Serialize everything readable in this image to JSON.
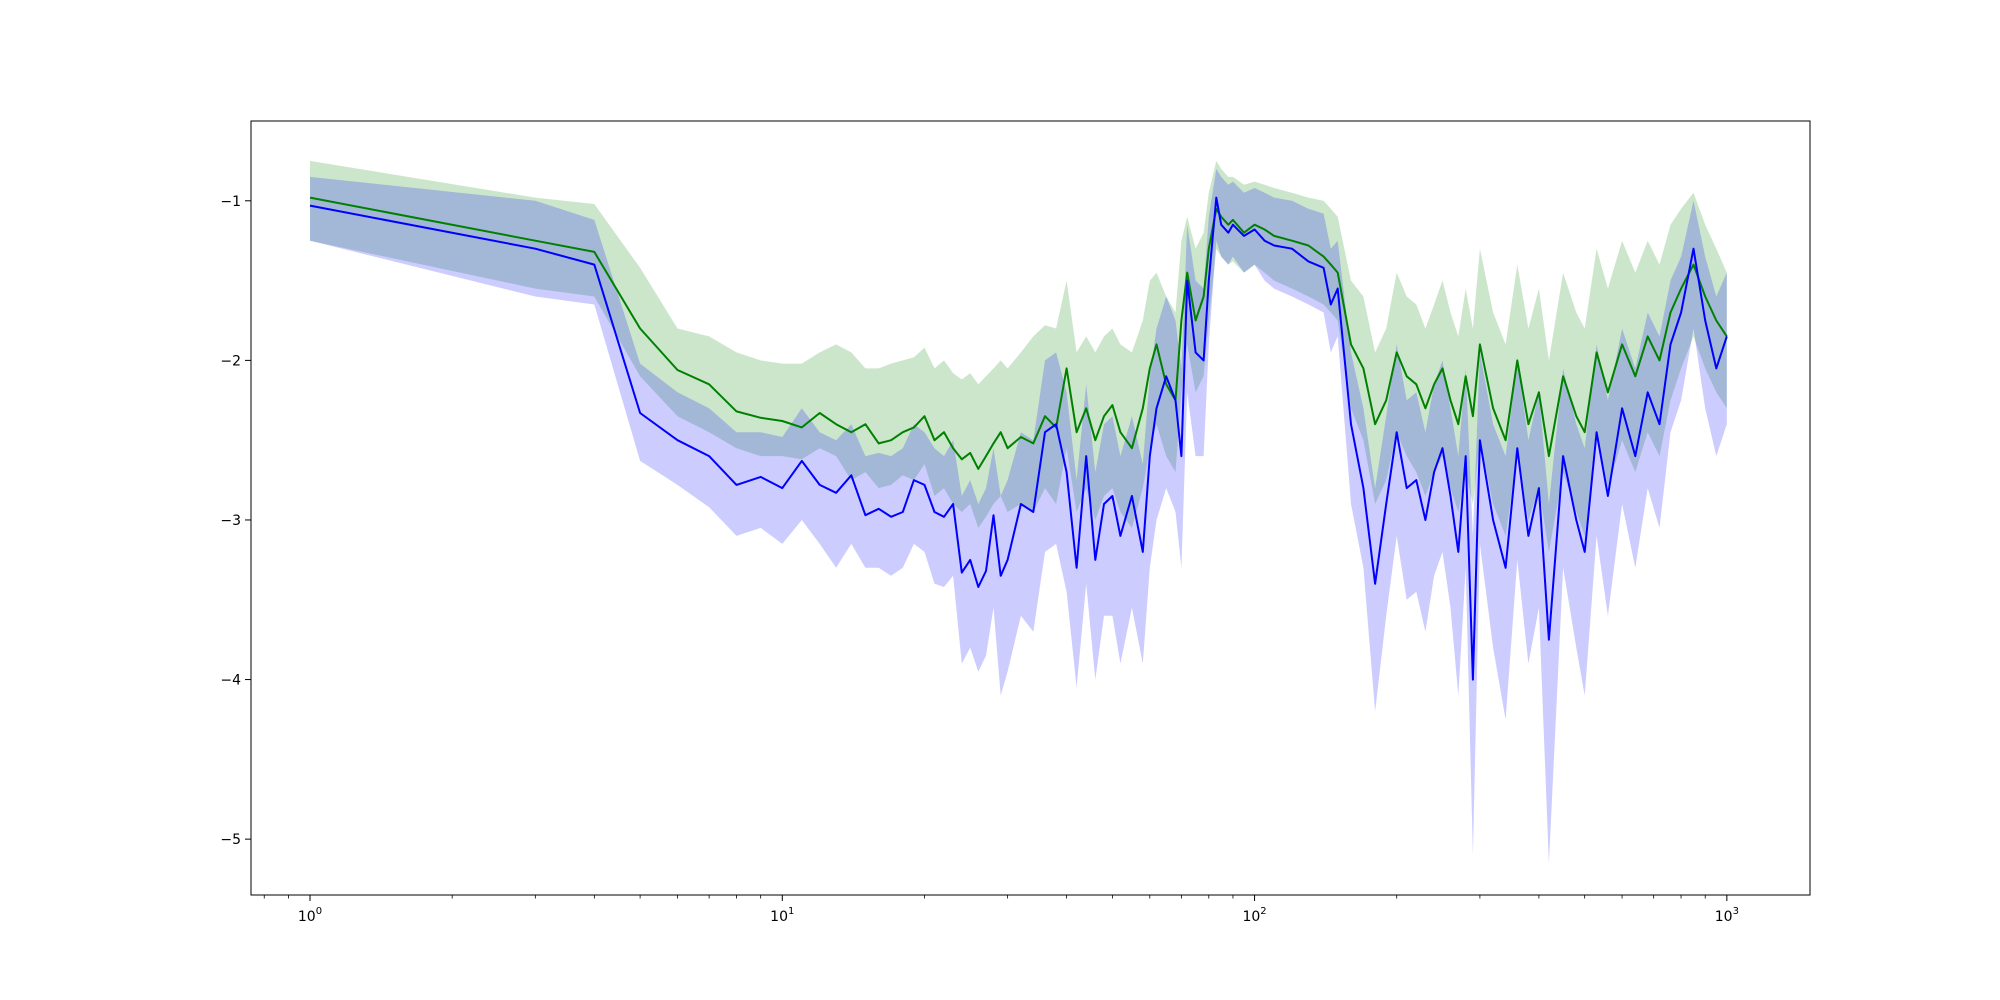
{
  "chart_data": {
    "type": "line",
    "xscale": "log",
    "xlim": [
      0.75,
      1500
    ],
    "ylim": [
      -5.35,
      -0.5
    ],
    "grid": false,
    "legend": "none",
    "title": "",
    "xlabel": "",
    "ylabel": "",
    "x_ticks": [
      {
        "value": 1,
        "base": "10",
        "exp": "0"
      },
      {
        "value": 10,
        "base": "10",
        "exp": "1"
      },
      {
        "value": 100,
        "base": "10",
        "exp": "2"
      },
      {
        "value": 1000,
        "base": "10",
        "exp": "3"
      }
    ],
    "y_ticks": [
      {
        "value": -1,
        "label": "−1"
      },
      {
        "value": -2,
        "label": "−2"
      },
      {
        "value": -3,
        "label": "−3"
      },
      {
        "value": -4,
        "label": "−4"
      },
      {
        "value": -5,
        "label": "−5"
      }
    ],
    "series": [
      {
        "color": "#008000",
        "band_color": "#008000",
        "band_opacity": 0.2,
        "x": [
          1,
          3,
          4,
          5,
          6,
          7,
          8,
          9,
          10,
          11,
          12,
          13,
          14,
          15,
          16,
          17,
          18,
          19,
          20,
          21,
          22,
          23,
          24,
          25,
          26,
          27,
          28,
          29,
          30,
          32,
          34,
          36,
          38,
          40,
          42,
          44,
          46,
          48,
          50,
          52,
          55,
          58,
          60,
          62,
          65,
          68,
          70,
          72,
          75,
          78,
          80,
          83,
          85,
          88,
          90,
          95,
          100,
          105,
          110,
          120,
          130,
          140,
          145,
          150,
          160,
          170,
          180,
          190,
          200,
          210,
          220,
          230,
          240,
          250,
          260,
          270,
          280,
          290,
          300,
          320,
          340,
          360,
          380,
          400,
          420,
          450,
          480,
          500,
          530,
          560,
          600,
          640,
          680,
          720,
          760,
          800,
          850,
          900,
          950,
          1000
        ],
        "y": [
          -0.98,
          -1.25,
          -1.32,
          -1.8,
          -2.06,
          -2.15,
          -2.32,
          -2.36,
          -2.38,
          -2.42,
          -2.33,
          -2.4,
          -2.45,
          -2.4,
          -2.52,
          -2.5,
          -2.45,
          -2.42,
          -2.35,
          -2.5,
          -2.45,
          -2.55,
          -2.62,
          -2.58,
          -2.68,
          -2.6,
          -2.52,
          -2.45,
          -2.55,
          -2.48,
          -2.52,
          -2.35,
          -2.42,
          -2.05,
          -2.45,
          -2.3,
          -2.5,
          -2.35,
          -2.28,
          -2.45,
          -2.55,
          -2.3,
          -2.05,
          -1.9,
          -2.15,
          -2.25,
          -1.75,
          -1.45,
          -1.75,
          -1.6,
          -1.3,
          -1.05,
          -1.1,
          -1.15,
          -1.12,
          -1.2,
          -1.15,
          -1.18,
          -1.22,
          -1.25,
          -1.28,
          -1.35,
          -1.4,
          -1.45,
          -1.9,
          -2.05,
          -2.4,
          -2.25,
          -1.95,
          -2.1,
          -2.15,
          -2.3,
          -2.15,
          -2.05,
          -2.25,
          -2.4,
          -2.1,
          -2.35,
          -1.9,
          -2.3,
          -2.5,
          -2.0,
          -2.4,
          -2.2,
          -2.6,
          -2.1,
          -2.35,
          -2.45,
          -1.95,
          -2.2,
          -1.9,
          -2.1,
          -1.85,
          -2.0,
          -1.7,
          -1.55,
          -1.4,
          -1.6,
          -1.75,
          -1.85
        ],
        "lower": [
          -1.25,
          -1.55,
          -1.6,
          -2.1,
          -2.35,
          -2.45,
          -2.55,
          -2.6,
          -2.6,
          -2.62,
          -2.55,
          -2.6,
          -2.75,
          -2.7,
          -2.8,
          -2.78,
          -2.72,
          -2.75,
          -2.65,
          -2.85,
          -2.8,
          -2.9,
          -2.95,
          -2.9,
          -3.05,
          -2.98,
          -2.9,
          -2.85,
          -2.95,
          -2.9,
          -2.95,
          -2.8,
          -2.9,
          -2.55,
          -2.95,
          -2.8,
          -3.0,
          -2.85,
          -2.8,
          -2.95,
          -3.05,
          -2.8,
          -2.55,
          -2.4,
          -2.6,
          -2.7,
          -2.2,
          -1.9,
          -2.2,
          -2.1,
          -1.75,
          -1.3,
          -1.35,
          -1.4,
          -1.38,
          -1.45,
          -1.4,
          -1.45,
          -1.5,
          -1.55,
          -1.6,
          -1.65,
          -1.7,
          -1.75,
          -2.3,
          -2.5,
          -2.9,
          -2.75,
          -2.45,
          -2.6,
          -2.7,
          -2.85,
          -2.7,
          -2.6,
          -2.8,
          -2.95,
          -2.7,
          -2.9,
          -2.5,
          -2.9,
          -3.1,
          -2.6,
          -3.0,
          -2.8,
          -3.2,
          -2.7,
          -2.95,
          -3.1,
          -2.5,
          -2.8,
          -2.5,
          -2.7,
          -2.45,
          -2.6,
          -2.25,
          -2.05,
          -1.85,
          -2.05,
          -2.2,
          -2.3
        ],
        "upper": [
          -0.75,
          -0.98,
          -1.02,
          -1.42,
          -1.8,
          -1.85,
          -1.95,
          -2.0,
          -2.02,
          -2.02,
          -1.95,
          -1.9,
          -1.95,
          -2.05,
          -2.05,
          -2.02,
          -2.0,
          -1.98,
          -1.92,
          -2.05,
          -2.0,
          -2.08,
          -2.12,
          -2.08,
          -2.15,
          -2.1,
          -2.05,
          -2.0,
          -2.05,
          -1.95,
          -1.85,
          -1.78,
          -1.8,
          -1.5,
          -1.95,
          -1.85,
          -1.95,
          -1.85,
          -1.8,
          -1.9,
          -1.95,
          -1.75,
          -1.5,
          -1.45,
          -1.6,
          -1.7,
          -1.25,
          -1.1,
          -1.3,
          -1.2,
          -0.95,
          -0.75,
          -0.8,
          -0.85,
          -0.85,
          -0.9,
          -0.88,
          -0.9,
          -0.92,
          -0.95,
          -0.98,
          -1.0,
          -1.05,
          -1.1,
          -1.5,
          -1.6,
          -1.95,
          -1.8,
          -1.45,
          -1.6,
          -1.65,
          -1.8,
          -1.65,
          -1.5,
          -1.7,
          -1.85,
          -1.55,
          -1.8,
          -1.3,
          -1.7,
          -1.9,
          -1.4,
          -1.8,
          -1.55,
          -2.0,
          -1.45,
          -1.7,
          -1.8,
          -1.3,
          -1.55,
          -1.25,
          -1.45,
          -1.25,
          -1.4,
          -1.15,
          -1.05,
          -0.95,
          -1.15,
          -1.3,
          -1.45
        ]
      },
      {
        "color": "#0000ff",
        "band_color": "#0000ff",
        "band_opacity": 0.2,
        "x": [
          1,
          3,
          4,
          5,
          6,
          7,
          8,
          9,
          10,
          11,
          12,
          13,
          14,
          15,
          16,
          17,
          18,
          19,
          20,
          21,
          22,
          23,
          24,
          25,
          26,
          27,
          28,
          29,
          30,
          32,
          34,
          36,
          38,
          40,
          42,
          44,
          46,
          48,
          50,
          52,
          55,
          58,
          60,
          62,
          65,
          68,
          70,
          72,
          75,
          78,
          80,
          83,
          85,
          88,
          90,
          95,
          100,
          105,
          110,
          120,
          130,
          140,
          145,
          150,
          160,
          170,
          180,
          190,
          200,
          210,
          220,
          230,
          240,
          250,
          260,
          270,
          280,
          290,
          300,
          320,
          340,
          360,
          380,
          400,
          420,
          450,
          480,
          500,
          530,
          560,
          600,
          640,
          680,
          720,
          760,
          800,
          850,
          900,
          950,
          1000
        ],
        "y": [
          -1.03,
          -1.3,
          -1.4,
          -2.33,
          -2.5,
          -2.6,
          -2.78,
          -2.73,
          -2.8,
          -2.63,
          -2.78,
          -2.83,
          -2.72,
          -2.97,
          -2.93,
          -2.98,
          -2.95,
          -2.75,
          -2.78,
          -2.95,
          -2.98,
          -2.9,
          -3.33,
          -3.25,
          -3.42,
          -3.32,
          -2.97,
          -3.35,
          -3.25,
          -2.9,
          -2.95,
          -2.45,
          -2.4,
          -2.7,
          -3.3,
          -2.6,
          -3.25,
          -2.9,
          -2.85,
          -3.1,
          -2.85,
          -3.2,
          -2.6,
          -2.3,
          -2.1,
          -2.25,
          -2.6,
          -1.5,
          -1.95,
          -2.0,
          -1.5,
          -0.98,
          -1.15,
          -1.2,
          -1.15,
          -1.22,
          -1.18,
          -1.25,
          -1.28,
          -1.3,
          -1.38,
          -1.42,
          -1.65,
          -1.55,
          -2.4,
          -2.8,
          -3.4,
          -2.9,
          -2.45,
          -2.8,
          -2.75,
          -3.0,
          -2.7,
          -2.55,
          -2.85,
          -3.2,
          -2.6,
          -4.0,
          -2.5,
          -3.0,
          -3.3,
          -2.55,
          -3.1,
          -2.8,
          -3.75,
          -2.6,
          -3.0,
          -3.2,
          -2.45,
          -2.85,
          -2.3,
          -2.6,
          -2.2,
          -2.4,
          -1.9,
          -1.7,
          -1.3,
          -1.75,
          -2.05,
          -1.85
        ],
        "lower": [
          -1.25,
          -1.6,
          -1.65,
          -2.63,
          -2.78,
          -2.92,
          -3.1,
          -3.05,
          -3.15,
          -3.0,
          -3.15,
          -3.3,
          -3.15,
          -3.3,
          -3.3,
          -3.35,
          -3.3,
          -3.15,
          -3.2,
          -3.4,
          -3.42,
          -3.35,
          -3.9,
          -3.8,
          -3.95,
          -3.85,
          -3.55,
          -4.1,
          -3.95,
          -3.6,
          -3.7,
          -3.2,
          -3.15,
          -3.45,
          -4.05,
          -3.4,
          -4.0,
          -3.6,
          -3.6,
          -3.9,
          -3.55,
          -3.9,
          -3.3,
          -3.0,
          -2.8,
          -2.95,
          -3.3,
          -2.2,
          -2.6,
          -2.6,
          -1.9,
          -1.25,
          -1.35,
          -1.4,
          -1.35,
          -1.45,
          -1.4,
          -1.5,
          -1.55,
          -1.6,
          -1.65,
          -1.7,
          -1.95,
          -1.85,
          -2.9,
          -3.3,
          -4.2,
          -3.6,
          -3.1,
          -3.5,
          -3.45,
          -3.7,
          -3.35,
          -3.2,
          -3.55,
          -4.1,
          -3.3,
          -5.1,
          -3.15,
          -3.8,
          -4.25,
          -3.25,
          -3.9,
          -3.55,
          -5.15,
          -3.3,
          -3.8,
          -4.1,
          -3.1,
          -3.6,
          -2.9,
          -3.3,
          -2.8,
          -3.05,
          -2.45,
          -2.25,
          -1.8,
          -2.3,
          -2.6,
          -2.4
        ],
        "upper": [
          -0.85,
          -1.0,
          -1.12,
          -2.02,
          -2.2,
          -2.3,
          -2.45,
          -2.45,
          -2.48,
          -2.3,
          -2.45,
          -2.5,
          -2.4,
          -2.6,
          -2.58,
          -2.6,
          -2.55,
          -2.4,
          -2.45,
          -2.55,
          -2.6,
          -2.5,
          -2.85,
          -2.75,
          -2.9,
          -2.8,
          -2.55,
          -2.85,
          -2.75,
          -2.45,
          -2.5,
          -2.0,
          -1.95,
          -2.2,
          -2.75,
          -2.15,
          -2.7,
          -2.4,
          -2.35,
          -2.6,
          -2.35,
          -2.65,
          -2.1,
          -1.8,
          -1.6,
          -1.75,
          -2.05,
          -1.15,
          -1.5,
          -1.55,
          -1.1,
          -0.8,
          -0.85,
          -0.9,
          -0.88,
          -0.95,
          -0.92,
          -0.95,
          -0.98,
          -1.0,
          -1.05,
          -1.08,
          -1.3,
          -1.25,
          -1.95,
          -2.3,
          -2.8,
          -2.35,
          -1.9,
          -2.25,
          -2.2,
          -2.45,
          -2.15,
          -2.0,
          -2.3,
          -2.6,
          -2.05,
          -3.1,
          -1.95,
          -2.4,
          -2.6,
          -2.0,
          -2.5,
          -2.2,
          -2.9,
          -2.05,
          -2.4,
          -2.55,
          -1.9,
          -2.25,
          -1.8,
          -2.05,
          -1.7,
          -1.85,
          -1.5,
          -1.35,
          -1.0,
          -1.35,
          -1.6,
          -1.45
        ]
      }
    ]
  }
}
